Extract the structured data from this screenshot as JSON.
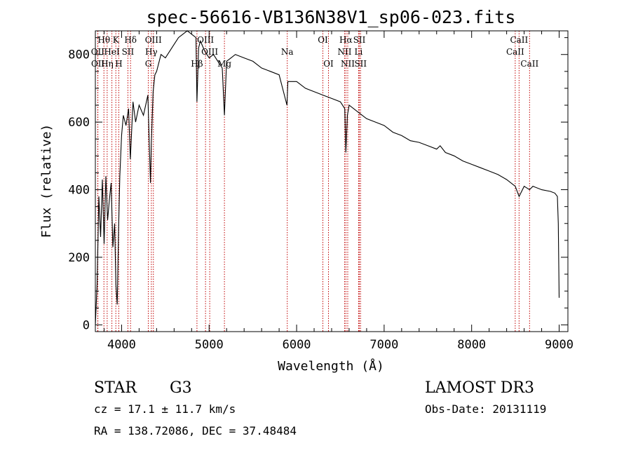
{
  "chart_data": {
    "type": "line",
    "title": "spec-56616-VB136N38V1_sp06-023.fits",
    "xlabel": "Wavelength (Å)",
    "ylabel": "Flux (relative)",
    "xlim": [
      3700,
      9100
    ],
    "ylim": [
      -20,
      870
    ],
    "x_ticks": [
      4000,
      5000,
      6000,
      7000,
      8000,
      9000
    ],
    "y_ticks": [
      0,
      200,
      400,
      600,
      800
    ],
    "series": [
      {
        "name": "spectrum",
        "x": [
          3700,
          3720,
          3740,
          3760,
          3780,
          3800,
          3820,
          3840,
          3860,
          3880,
          3900,
          3920,
          3935,
          3950,
          3965,
          3980,
          4000,
          4020,
          4050,
          4080,
          4100,
          4130,
          4160,
          4200,
          4250,
          4300,
          4330,
          4340,
          4360,
          4380,
          4400,
          4450,
          4500,
          4550,
          4600,
          4650,
          4700,
          4750,
          4800,
          4850,
          4861,
          4880,
          4900,
          4950,
          5000,
          5050,
          5100,
          5150,
          5175,
          5200,
          5250,
          5300,
          5400,
          5500,
          5600,
          5700,
          5800,
          5890,
          5900,
          6000,
          6100,
          6200,
          6300,
          6400,
          6500,
          6550,
          6563,
          6580,
          6600,
          6700,
          6800,
          6900,
          7000,
          7100,
          7200,
          7300,
          7400,
          7500,
          7600,
          7640,
          7700,
          7800,
          7900,
          8000,
          8100,
          8200,
          8300,
          8400,
          8498,
          8542,
          8600,
          8662,
          8700,
          8800,
          8900,
          8950,
          8980,
          8990,
          9000
        ],
        "y": [
          0,
          120,
          380,
          260,
          430,
          240,
          440,
          310,
          370,
          420,
          230,
          300,
          120,
          60,
          280,
          440,
          560,
          620,
          590,
          640,
          490,
          660,
          600,
          650,
          620,
          680,
          420,
          540,
          690,
          740,
          750,
          800,
          790,
          810,
          830,
          850,
          860,
          870,
          860,
          850,
          660,
          820,
          840,
          810,
          790,
          800,
          780,
          760,
          620,
          780,
          790,
          800,
          790,
          780,
          760,
          750,
          740,
          650,
          720,
          720,
          700,
          690,
          680,
          670,
          660,
          640,
          510,
          620,
          650,
          630,
          610,
          600,
          590,
          570,
          560,
          545,
          540,
          530,
          520,
          530,
          510,
          500,
          485,
          475,
          465,
          455,
          445,
          430,
          410,
          380,
          410,
          400,
          410,
          400,
          395,
          390,
          380,
          300,
          80
        ]
      }
    ],
    "spectral_lines": [
      {
        "name": "Hθ",
        "wavelength": 3798,
        "row": 1
      },
      {
        "name": "OII",
        "wavelength": 3727,
        "row": 2
      },
      {
        "name": "OII",
        "wavelength": 3729,
        "row": 3
      },
      {
        "name": "Hη",
        "wavelength": 3835,
        "row": 3
      },
      {
        "name": "K",
        "wavelength": 3934,
        "row": 1
      },
      {
        "name": "HeI",
        "wavelength": 3889,
        "row": 2
      },
      {
        "name": "H",
        "wavelength": 3968,
        "row": 3
      },
      {
        "name": "Hδ",
        "wavelength": 4102,
        "row": 1
      },
      {
        "name": "SII",
        "wavelength": 4072,
        "row": 2
      },
      {
        "name": "OIII",
        "wavelength": 4363,
        "row": 1
      },
      {
        "name": "Hγ",
        "wavelength": 4340,
        "row": 2
      },
      {
        "name": "G",
        "wavelength": 4305,
        "row": 3
      },
      {
        "name": "Hβ",
        "wavelength": 4861,
        "row": 3
      },
      {
        "name": "OIII",
        "wavelength": 4959,
        "row": 1
      },
      {
        "name": "OIII",
        "wavelength": 5007,
        "row": 2
      },
      {
        "name": "Mg",
        "wavelength": 5175,
        "row": 3
      },
      {
        "name": "Na",
        "wavelength": 5893,
        "row": 2
      },
      {
        "name": "OI",
        "wavelength": 6300,
        "row": 1
      },
      {
        "name": "OI",
        "wavelength": 6364,
        "row": 3
      },
      {
        "name": "Hα",
        "wavelength": 6563,
        "row": 1
      },
      {
        "name": "NII",
        "wavelength": 6548,
        "row": 2
      },
      {
        "name": "NII",
        "wavelength": 6584,
        "row": 3
      },
      {
        "name": "SII",
        "wavelength": 6717,
        "row": 1
      },
      {
        "name": "Li",
        "wavelength": 6708,
        "row": 2
      },
      {
        "name": "SII",
        "wavelength": 6731,
        "row": 3
      },
      {
        "name": "CaII",
        "wavelength": 8542,
        "row": 1
      },
      {
        "name": "CaII",
        "wavelength": 8498,
        "row": 2
      },
      {
        "name": "CaII",
        "wavelength": 8662,
        "row": 3
      }
    ]
  },
  "info": {
    "object_type": "STAR",
    "subclass": "G3",
    "survey": "LAMOST DR3",
    "redshift_text": "cz = 17.1 ± 11.7 km/s",
    "obs_date_text": "Obs-Date: 20131119",
    "coords_text": "RA = 138.72086, DEC =  37.48484"
  },
  "colors": {
    "line_marker": "#c00000",
    "spectrum": "#000000"
  }
}
